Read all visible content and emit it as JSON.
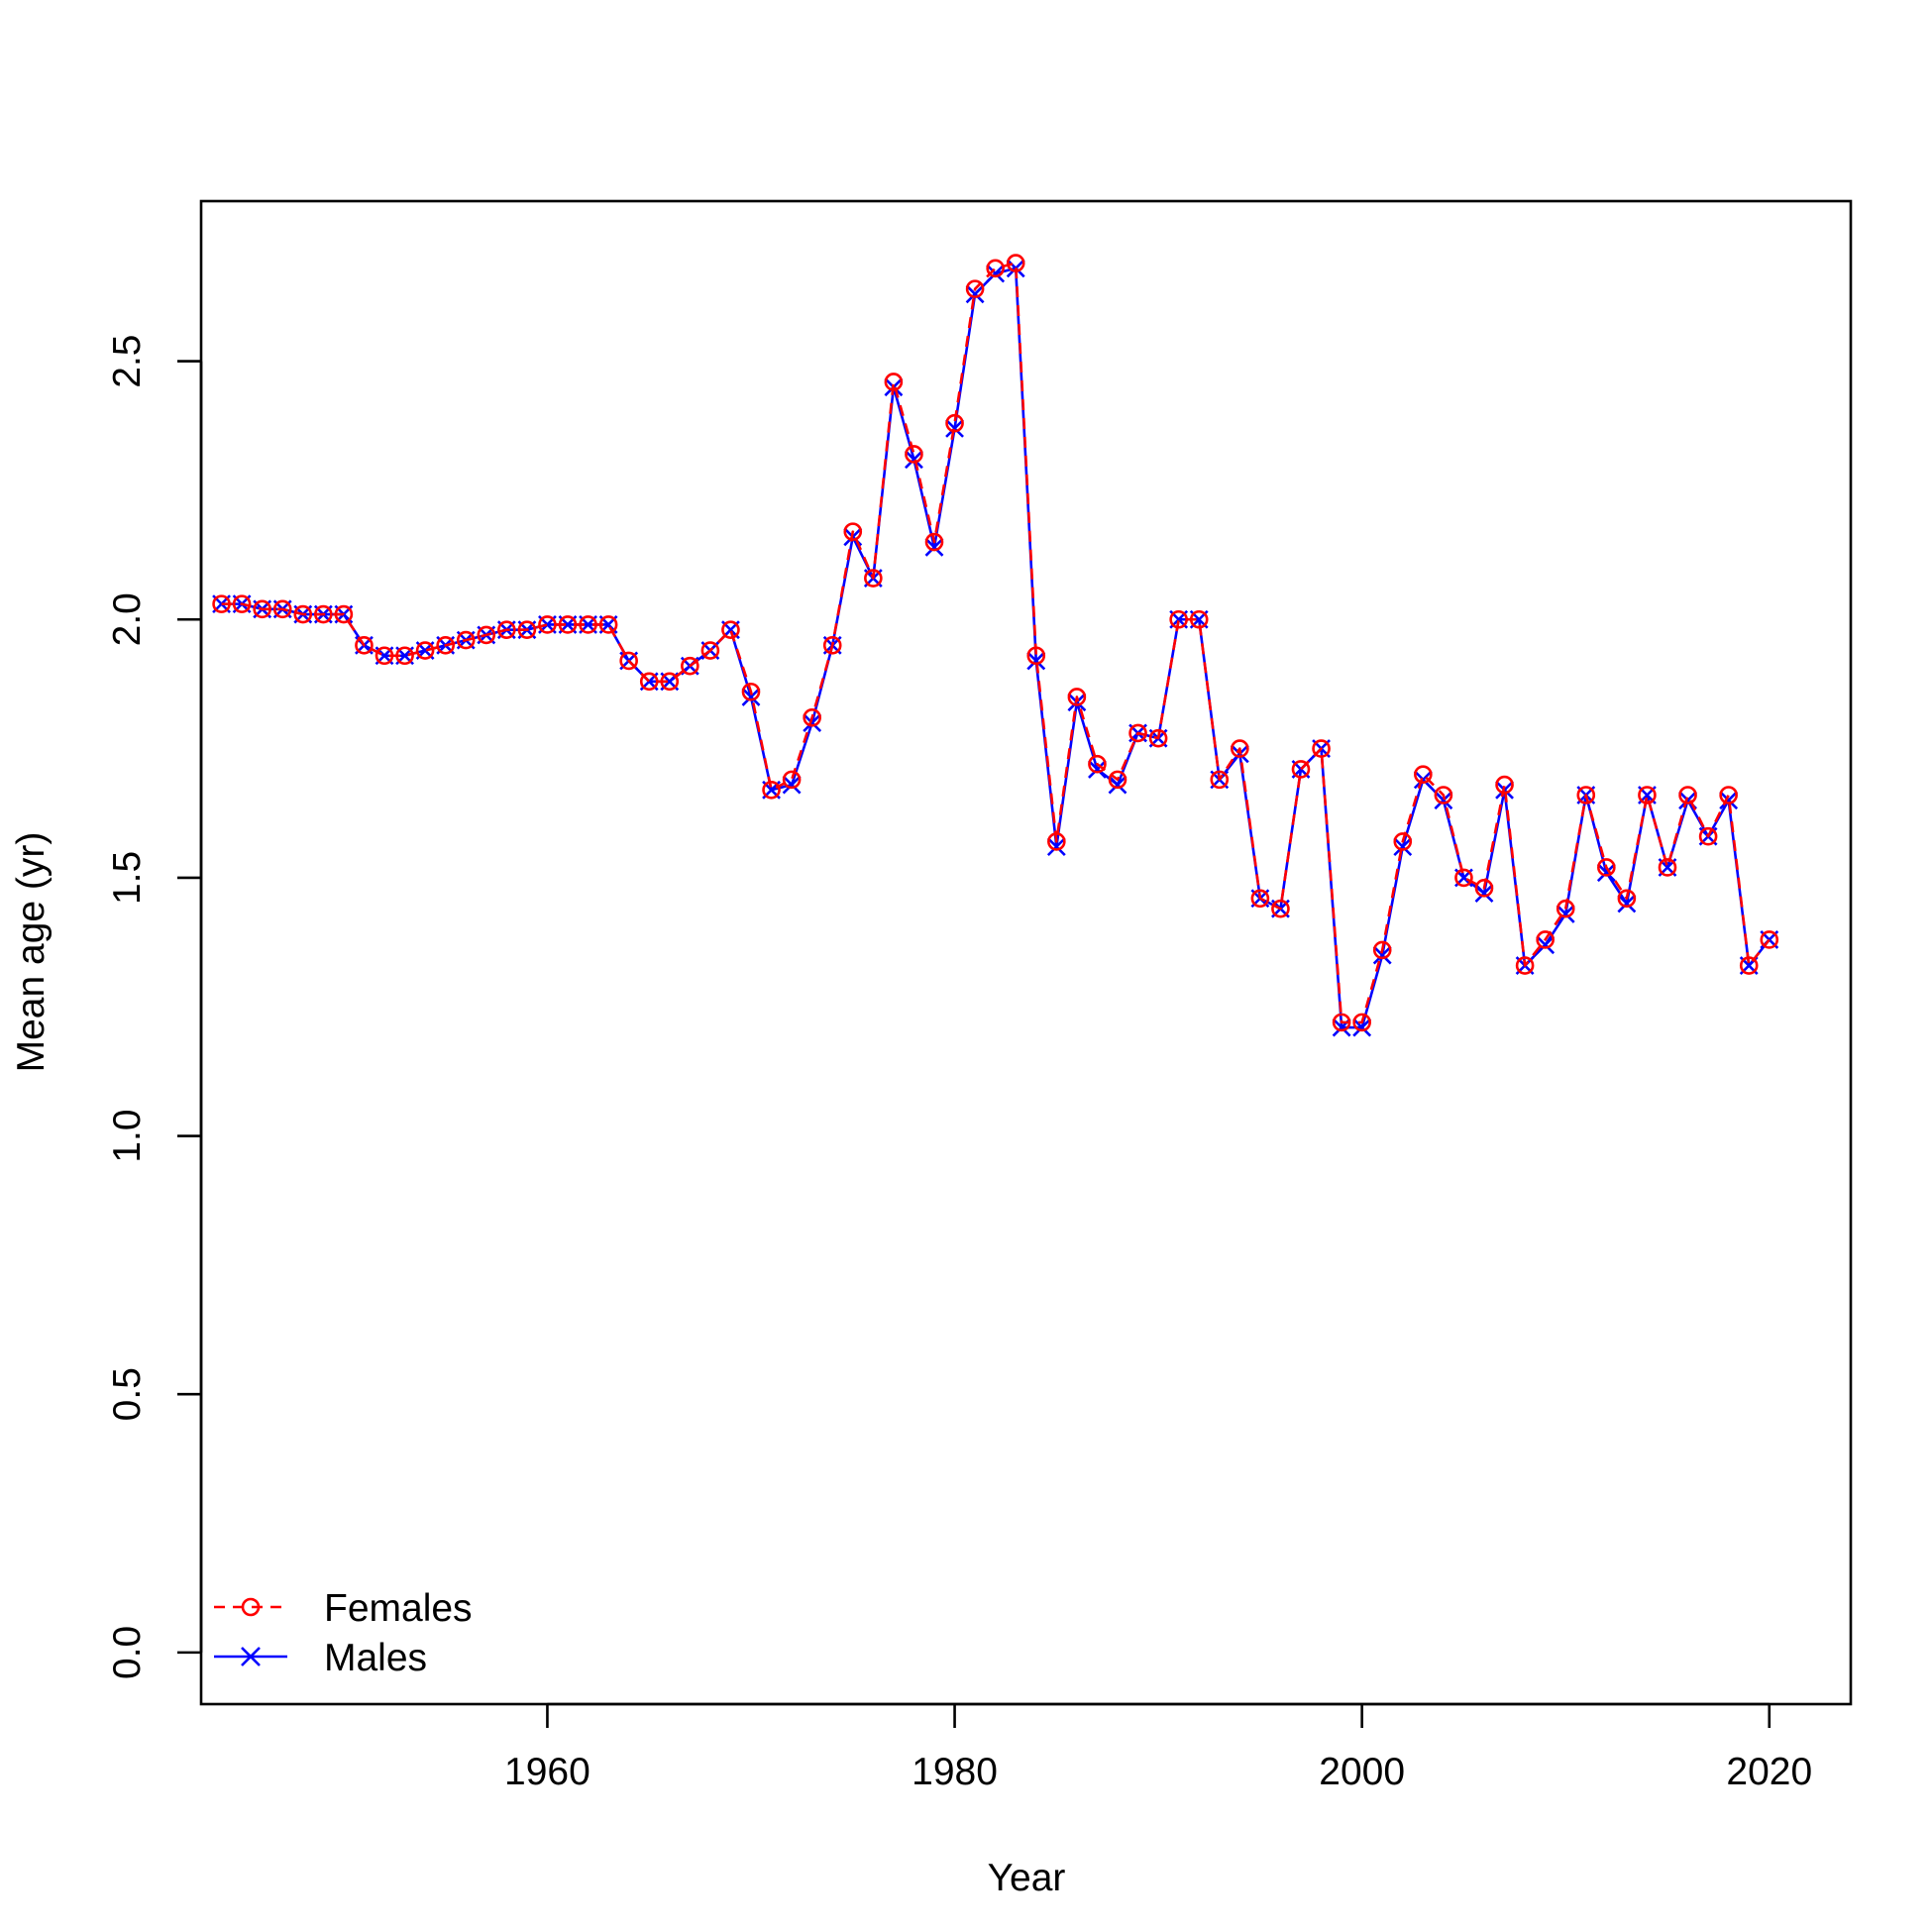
{
  "chart_data": {
    "type": "line",
    "title": "",
    "xlabel": "Year",
    "ylabel": "Mean age (yr)",
    "xlim": [
      1943,
      2024
    ],
    "ylim": [
      -0.1,
      2.81
    ],
    "x_ticks": [
      1960,
      1980,
      2000,
      2020
    ],
    "x_tick_labels": [
      "1960",
      "1980",
      "2000",
      "2020"
    ],
    "y_ticks": [
      0.0,
      0.5,
      1.0,
      1.5,
      2.0,
      2.5
    ],
    "y_tick_labels": [
      "0.0",
      "0.5",
      "1.0",
      "1.5",
      "2.0",
      "2.5"
    ],
    "grid": false,
    "legend_position": "bottom-left",
    "x": [
      1944,
      1945,
      1946,
      1947,
      1948,
      1949,
      1950,
      1951,
      1952,
      1953,
      1954,
      1955,
      1956,
      1957,
      1958,
      1959,
      1960,
      1961,
      1962,
      1963,
      1964,
      1965,
      1966,
      1967,
      1968,
      1969,
      1970,
      1971,
      1972,
      1973,
      1974,
      1975,
      1976,
      1977,
      1978,
      1979,
      1980,
      1981,
      1982,
      1983,
      1984,
      1985,
      1986,
      1987,
      1988,
      1989,
      1990,
      1991,
      1992,
      1993,
      1994,
      1995,
      1996,
      1997,
      1998,
      1999,
      2000,
      2001,
      2002,
      2003,
      2004,
      2005,
      2006,
      2007,
      2008,
      2009,
      2010,
      2011,
      2012,
      2013,
      2014,
      2015,
      2016,
      2017,
      2018,
      2019,
      2020
    ],
    "series": [
      {
        "name": "Females",
        "color": "#ff0000",
        "line_style": "dashed",
        "marker": "circle",
        "values": [
          2.03,
          2.03,
          2.02,
          2.02,
          2.01,
          2.01,
          2.01,
          1.95,
          1.93,
          1.93,
          1.94,
          1.95,
          1.96,
          1.97,
          1.98,
          1.98,
          1.99,
          1.99,
          1.99,
          1.99,
          1.92,
          1.88,
          1.88,
          1.91,
          1.94,
          1.98,
          1.86,
          1.67,
          1.69,
          1.81,
          1.95,
          2.17,
          2.08,
          2.46,
          2.32,
          2.15,
          2.38,
          2.64,
          2.68,
          2.69,
          1.93,
          1.57,
          1.85,
          1.72,
          1.69,
          1.78,
          1.77,
          2.0,
          2.0,
          1.69,
          1.75,
          1.46,
          1.44,
          1.71,
          1.75,
          1.22,
          1.22,
          1.36,
          1.57,
          1.7,
          1.66,
          1.5,
          1.48,
          1.68,
          1.33,
          1.38,
          1.44,
          1.66,
          1.52,
          1.46,
          1.66,
          1.52,
          1.66,
          1.58,
          1.66,
          1.33,
          1.38
        ]
      },
      {
        "name": "Males",
        "color": "#0000ff",
        "line_style": "solid",
        "marker": "x",
        "values": [
          2.03,
          2.03,
          2.02,
          2.02,
          2.01,
          2.01,
          2.01,
          1.95,
          1.93,
          1.93,
          1.94,
          1.95,
          1.96,
          1.97,
          1.98,
          1.98,
          1.99,
          1.99,
          1.99,
          1.99,
          1.92,
          1.88,
          1.88,
          1.91,
          1.94,
          1.98,
          1.85,
          1.67,
          1.68,
          1.8,
          1.95,
          2.16,
          2.08,
          2.45,
          2.31,
          2.14,
          2.37,
          2.63,
          2.67,
          2.68,
          1.92,
          1.56,
          1.84,
          1.71,
          1.68,
          1.78,
          1.77,
          2.0,
          2.0,
          1.69,
          1.74,
          1.46,
          1.44,
          1.71,
          1.75,
          1.21,
          1.21,
          1.35,
          1.56,
          1.69,
          1.65,
          1.5,
          1.47,
          1.67,
          1.33,
          1.37,
          1.43,
          1.66,
          1.51,
          1.45,
          1.66,
          1.52,
          1.65,
          1.58,
          1.65,
          1.33,
          1.38
        ]
      }
    ]
  }
}
